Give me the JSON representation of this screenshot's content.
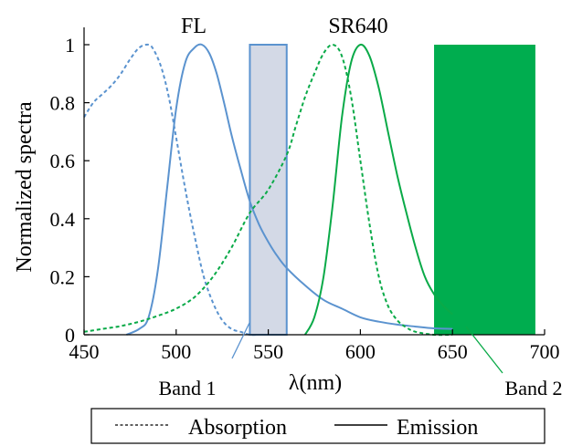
{
  "chart_data": {
    "type": "line",
    "xlabel": "λ(nm)",
    "ylabel": "Normalized spectra",
    "xlim": [
      450,
      700
    ],
    "ylim": [
      0,
      1
    ],
    "x_ticks": [
      "450",
      "500",
      "550",
      "600",
      "650",
      "700"
    ],
    "y_ticks": [
      "0",
      "0.2",
      "0.4",
      "0.6",
      "0.8",
      "1"
    ],
    "grid": false,
    "colors": {
      "fl": "#5b93cf",
      "sr640": "#0aaa48",
      "band1_fill": "#d3d9e6",
      "band1_edge": "#5b93cf",
      "band2_fill": "#00ad4f",
      "band1_label": "#3f6fa8",
      "band2_label": "#17a64c"
    },
    "labels": {
      "fl": "FL",
      "sr640": "SR640",
      "band1": "Band 1",
      "band2": "Band 2"
    },
    "bands": [
      {
        "label": "Band 1",
        "x": [
          540,
          560
        ],
        "y": 1.0
      },
      {
        "label": "Band 2",
        "x": [
          640,
          695
        ],
        "y": 1.0
      }
    ],
    "series": [
      {
        "dye": "FL",
        "kind": "Absorption",
        "style": "dashed",
        "x": [
          450,
          455,
          460,
          465,
          470,
          475,
          480,
          485,
          488,
          492,
          496,
          500,
          505,
          510,
          515,
          520,
          525,
          530,
          535,
          540,
          545,
          550
        ],
        "y": [
          0.75,
          0.8,
          0.83,
          0.86,
          0.9,
          0.95,
          0.99,
          1.0,
          0.98,
          0.92,
          0.82,
          0.68,
          0.5,
          0.34,
          0.2,
          0.11,
          0.05,
          0.02,
          0.01,
          0.0,
          0.0,
          0.0
        ]
      },
      {
        "dye": "FL",
        "kind": "Emission",
        "style": "solid",
        "x": [
          473,
          480,
          485,
          490,
          495,
          500,
          505,
          510,
          514,
          518,
          522,
          526,
          530,
          535,
          540,
          545,
          550,
          555,
          560,
          570,
          580,
          590,
          600,
          610,
          620,
          630,
          640,
          650
        ],
        "y": [
          0.0,
          0.02,
          0.06,
          0.22,
          0.5,
          0.78,
          0.94,
          0.99,
          1.0,
          0.97,
          0.9,
          0.8,
          0.69,
          0.57,
          0.46,
          0.38,
          0.32,
          0.27,
          0.23,
          0.17,
          0.12,
          0.09,
          0.06,
          0.045,
          0.035,
          0.028,
          0.022,
          0.02
        ]
      },
      {
        "dye": "SR640",
        "kind": "Absorption",
        "style": "dashed",
        "x": [
          450,
          460,
          470,
          480,
          490,
          500,
          510,
          520,
          530,
          540,
          550,
          560,
          565,
          570,
          575,
          580,
          585,
          590,
          595,
          600,
          605,
          610,
          615,
          620,
          625,
          630,
          640,
          650
        ],
        "y": [
          0.01,
          0.02,
          0.03,
          0.045,
          0.065,
          0.09,
          0.13,
          0.2,
          0.3,
          0.42,
          0.5,
          0.62,
          0.72,
          0.82,
          0.9,
          0.97,
          1.0,
          0.96,
          0.82,
          0.6,
          0.38,
          0.2,
          0.1,
          0.05,
          0.025,
          0.01,
          0.0,
          0.0
        ]
      },
      {
        "dye": "SR640",
        "kind": "Emission",
        "style": "solid",
        "x": [
          570,
          575,
          580,
          585,
          590,
          595,
          600,
          605,
          610,
          615,
          620,
          625,
          630,
          635,
          640,
          645,
          650
        ],
        "y": [
          0.0,
          0.06,
          0.2,
          0.45,
          0.75,
          0.94,
          1.0,
          0.96,
          0.85,
          0.7,
          0.55,
          0.42,
          0.3,
          0.2,
          0.14,
          0.1,
          0.07
        ]
      }
    ],
    "legend": {
      "position": "bottom",
      "entries": [
        {
          "label": "Absorption",
          "style": "dashed"
        },
        {
          "label": "Emission",
          "style": "solid"
        }
      ]
    }
  }
}
